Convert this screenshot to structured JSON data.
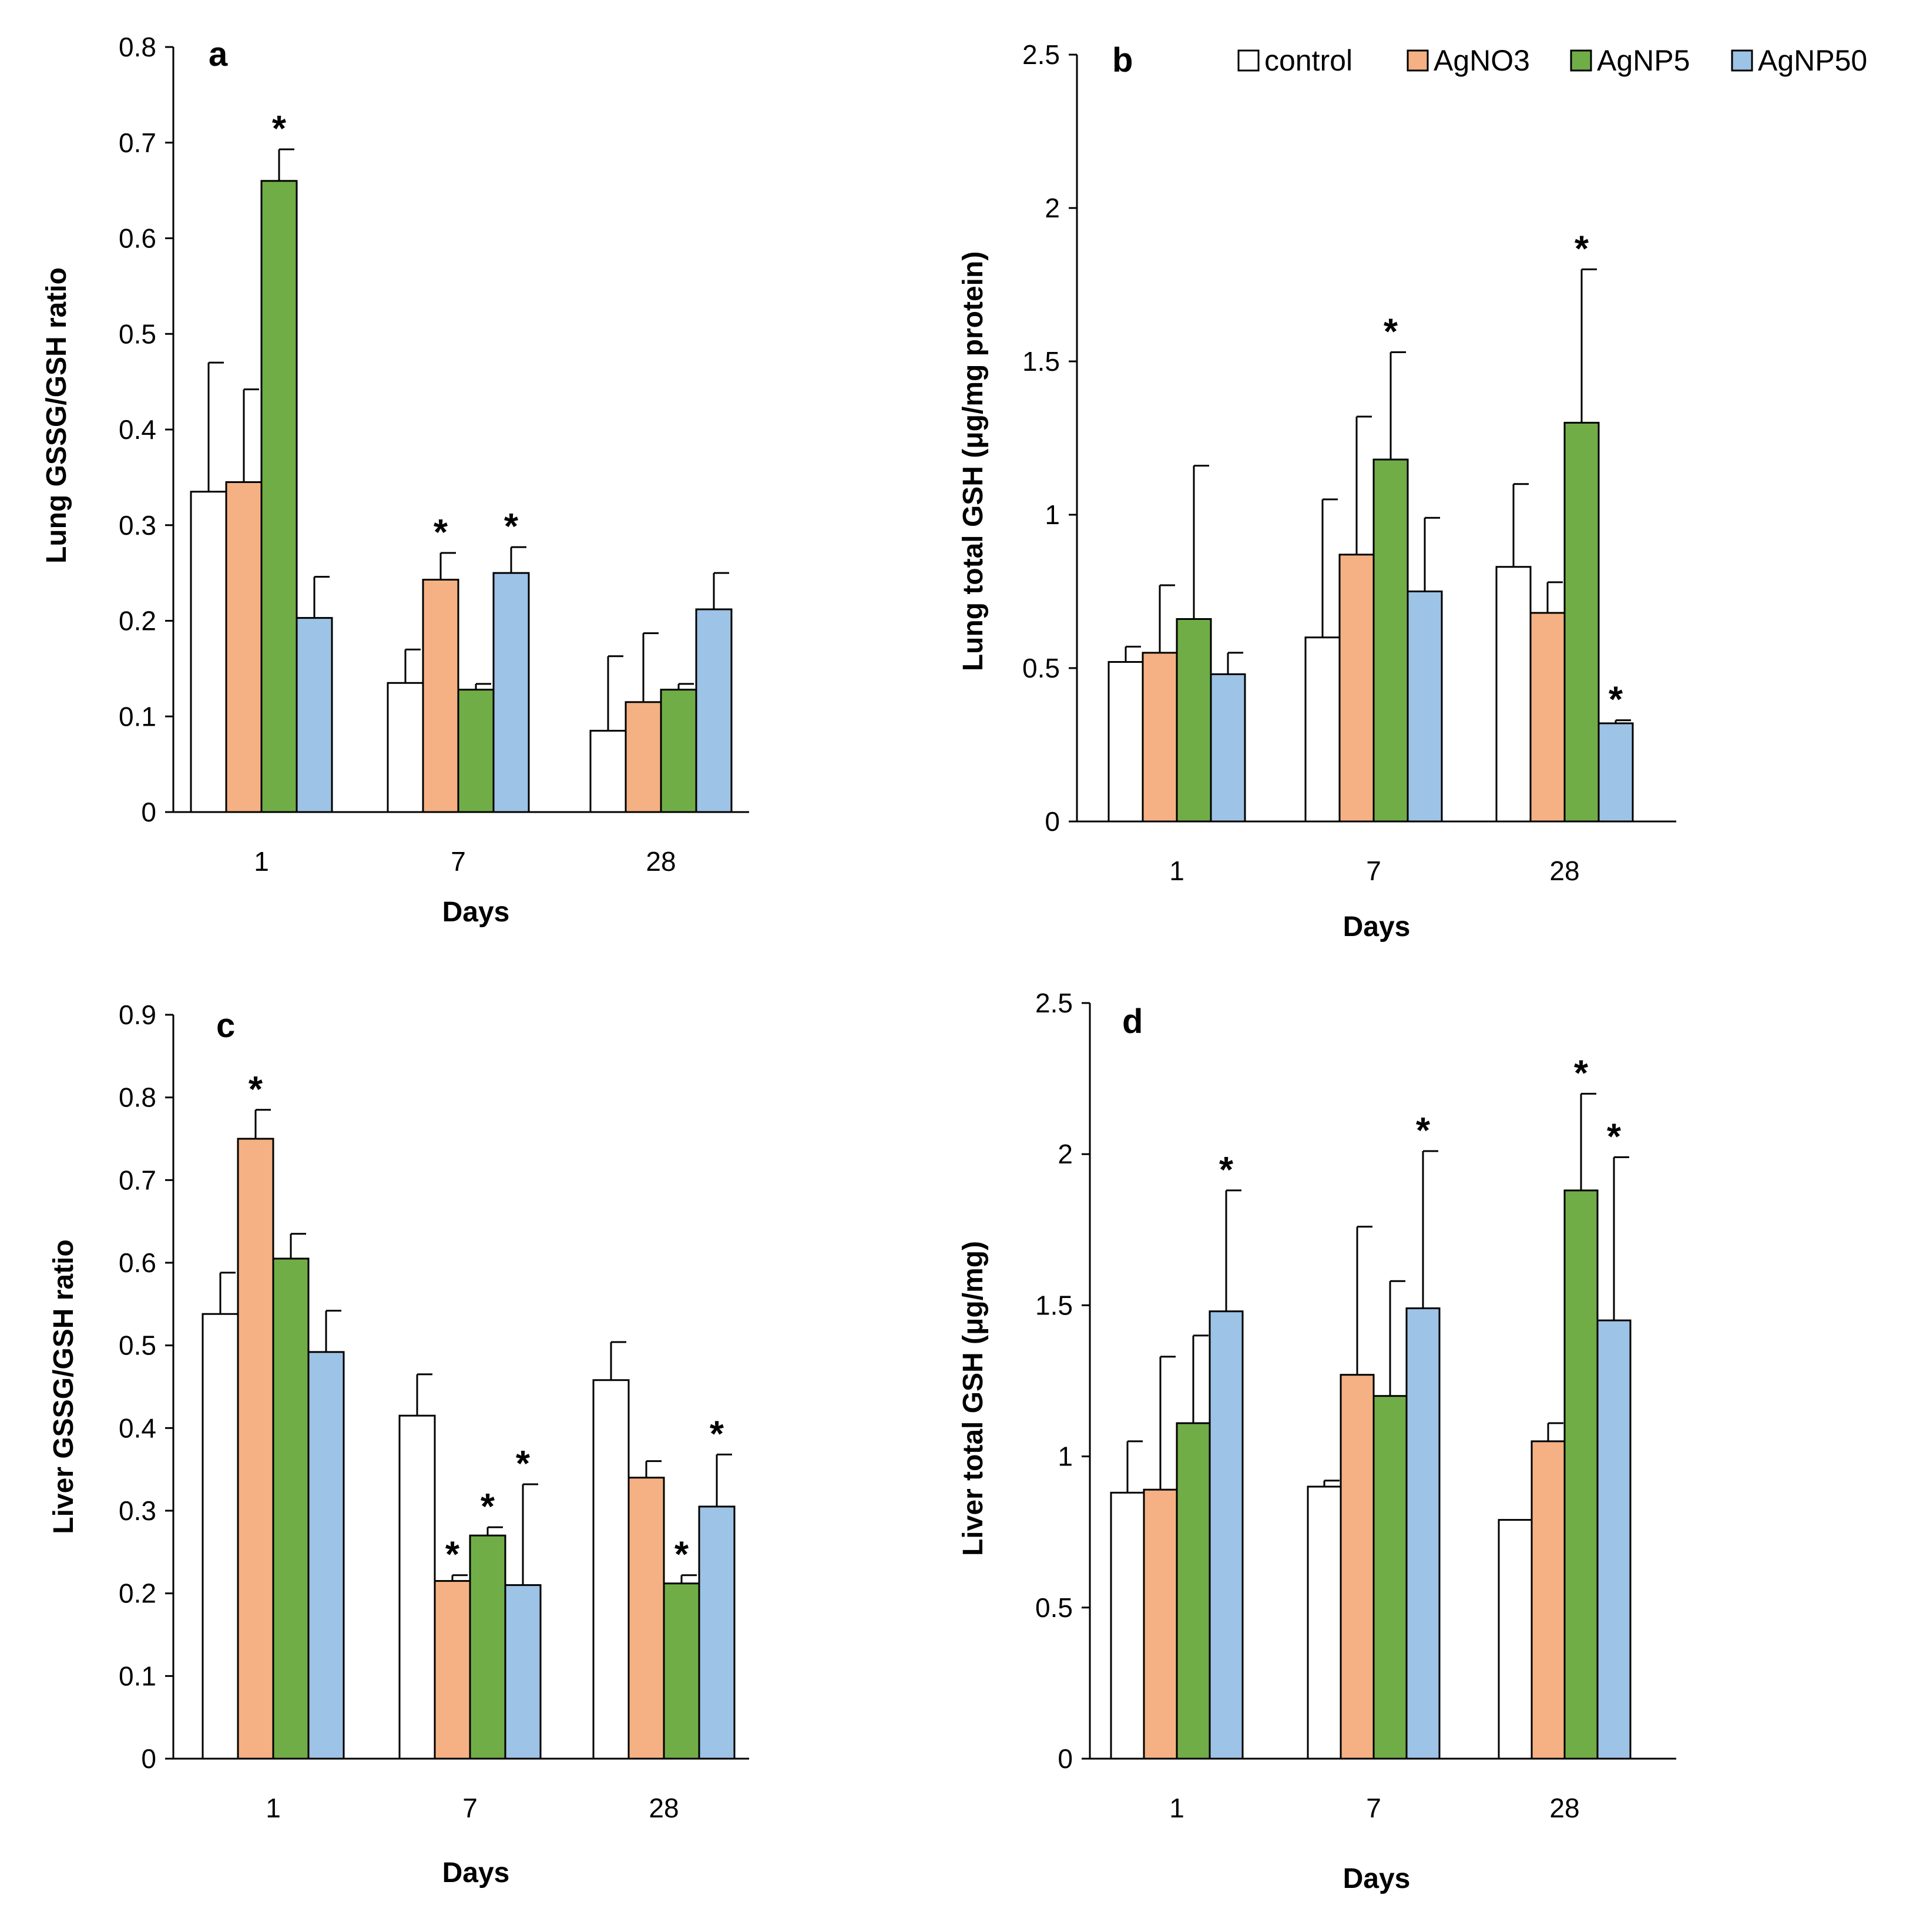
{
  "legend": {
    "items": [
      {
        "label": "control",
        "color": "#ffffff"
      },
      {
        "label": "AgNO3",
        "color": "#f5b183"
      },
      {
        "label": "AgNP5",
        "color": "#70ad47"
      },
      {
        "label": "AgNP50",
        "color": "#9dc3e6"
      }
    ]
  },
  "chart_data": [
    {
      "panel": "a",
      "type": "bar",
      "ylabel": "Lung GSSG/GSH ratio",
      "xlabel": "Days",
      "categories": [
        "1",
        "7",
        "28"
      ],
      "ylim": [
        0,
        0.8
      ],
      "yticks": [
        0,
        0.1,
        0.2,
        0.3,
        0.4,
        0.5,
        0.6,
        0.7,
        0.8
      ],
      "series": [
        {
          "name": "control",
          "values": [
            0.335,
            0.135,
            0.085
          ],
          "errors": [
            0.135,
            0.035,
            0.078
          ],
          "significant": [
            false,
            false,
            false
          ]
        },
        {
          "name": "AgNO3",
          "values": [
            0.345,
            0.243,
            0.115
          ],
          "errors": [
            0.097,
            0.028,
            0.072
          ],
          "significant": [
            false,
            true,
            false
          ]
        },
        {
          "name": "AgNP5",
          "values": [
            0.66,
            0.128,
            0.128
          ],
          "errors": [
            0.033,
            0.006,
            0.006
          ],
          "significant": [
            true,
            false,
            false
          ]
        },
        {
          "name": "AgNP50",
          "values": [
            0.203,
            0.25,
            0.212
          ],
          "errors": [
            0.043,
            0.027,
            0.038
          ],
          "significant": [
            false,
            true,
            false
          ]
        }
      ]
    },
    {
      "panel": "b",
      "type": "bar",
      "ylabel": "Lung total GSH (μg/mg protein)",
      "xlabel": "Days",
      "categories": [
        "1",
        "7",
        "28"
      ],
      "ylim": [
        0,
        2.5
      ],
      "yticks": [
        0,
        0.5,
        1,
        1.5,
        2,
        2.5
      ],
      "series": [
        {
          "name": "control",
          "values": [
            0.52,
            0.6,
            0.83
          ],
          "errors": [
            0.05,
            0.45,
            0.27
          ],
          "significant": [
            false,
            false,
            false
          ]
        },
        {
          "name": "AgNO3",
          "values": [
            0.55,
            0.87,
            0.68
          ],
          "errors": [
            0.22,
            0.45,
            0.1
          ],
          "significant": [
            false,
            false,
            false
          ]
        },
        {
          "name": "AgNP5",
          "values": [
            0.66,
            1.18,
            1.3
          ],
          "errors": [
            0.5,
            0.35,
            0.5
          ],
          "significant": [
            false,
            true,
            true
          ]
        },
        {
          "name": "AgNP50",
          "values": [
            0.48,
            0.75,
            0.32
          ],
          "errors": [
            0.07,
            0.24,
            0.01
          ],
          "significant": [
            false,
            false,
            true
          ]
        }
      ]
    },
    {
      "panel": "c",
      "type": "bar",
      "ylabel": "Liver GSSG/GSH ratio",
      "xlabel": "Days",
      "categories": [
        "1",
        "7",
        "28"
      ],
      "ylim": [
        0,
        0.9
      ],
      "yticks": [
        0,
        0.1,
        0.2,
        0.3,
        0.4,
        0.5,
        0.6,
        0.7,
        0.8,
        0.9
      ],
      "series": [
        {
          "name": "control",
          "values": [
            0.538,
            0.415,
            0.458
          ],
          "errors": [
            0.05,
            0.05,
            0.046
          ],
          "significant": [
            false,
            false,
            false
          ]
        },
        {
          "name": "AgNO3",
          "values": [
            0.75,
            0.215,
            0.34
          ],
          "errors": [
            0.035,
            0.007,
            0.02
          ],
          "significant": [
            true,
            true,
            false
          ]
        },
        {
          "name": "AgNP5",
          "values": [
            0.605,
            0.27,
            0.212
          ],
          "errors": [
            0.03,
            0.01,
            0.01
          ],
          "significant": [
            false,
            true,
            true
          ]
        },
        {
          "name": "AgNP50",
          "values": [
            0.492,
            0.21,
            0.305
          ],
          "errors": [
            0.05,
            0.122,
            0.063
          ],
          "significant": [
            false,
            true,
            true
          ]
        }
      ]
    },
    {
      "panel": "d",
      "type": "bar",
      "ylabel": "Liver total GSH (μg/mg)",
      "xlabel": "Days",
      "categories": [
        "1",
        "7",
        "28"
      ],
      "ylim": [
        0,
        2.5
      ],
      "yticks": [
        0,
        0.5,
        1,
        1.5,
        2,
        2.5
      ],
      "series": [
        {
          "name": "control",
          "values": [
            0.88,
            0.9,
            0.79
          ],
          "errors": [
            0.17,
            0.02,
            0
          ],
          "significant": [
            false,
            false,
            false
          ]
        },
        {
          "name": "AgNO3",
          "values": [
            0.89,
            1.27,
            1.05
          ],
          "errors": [
            0.44,
            0.49,
            0.06
          ],
          "significant": [
            false,
            false,
            false
          ]
        },
        {
          "name": "AgNP5",
          "values": [
            1.11,
            1.2,
            1.88
          ],
          "errors": [
            0.29,
            0.38,
            0.32
          ],
          "significant": [
            false,
            false,
            true
          ]
        },
        {
          "name": "AgNP50",
          "values": [
            1.48,
            1.49,
            1.45
          ],
          "errors": [
            0.4,
            0.52,
            0.54
          ],
          "significant": [
            true,
            true,
            true
          ]
        }
      ]
    }
  ]
}
